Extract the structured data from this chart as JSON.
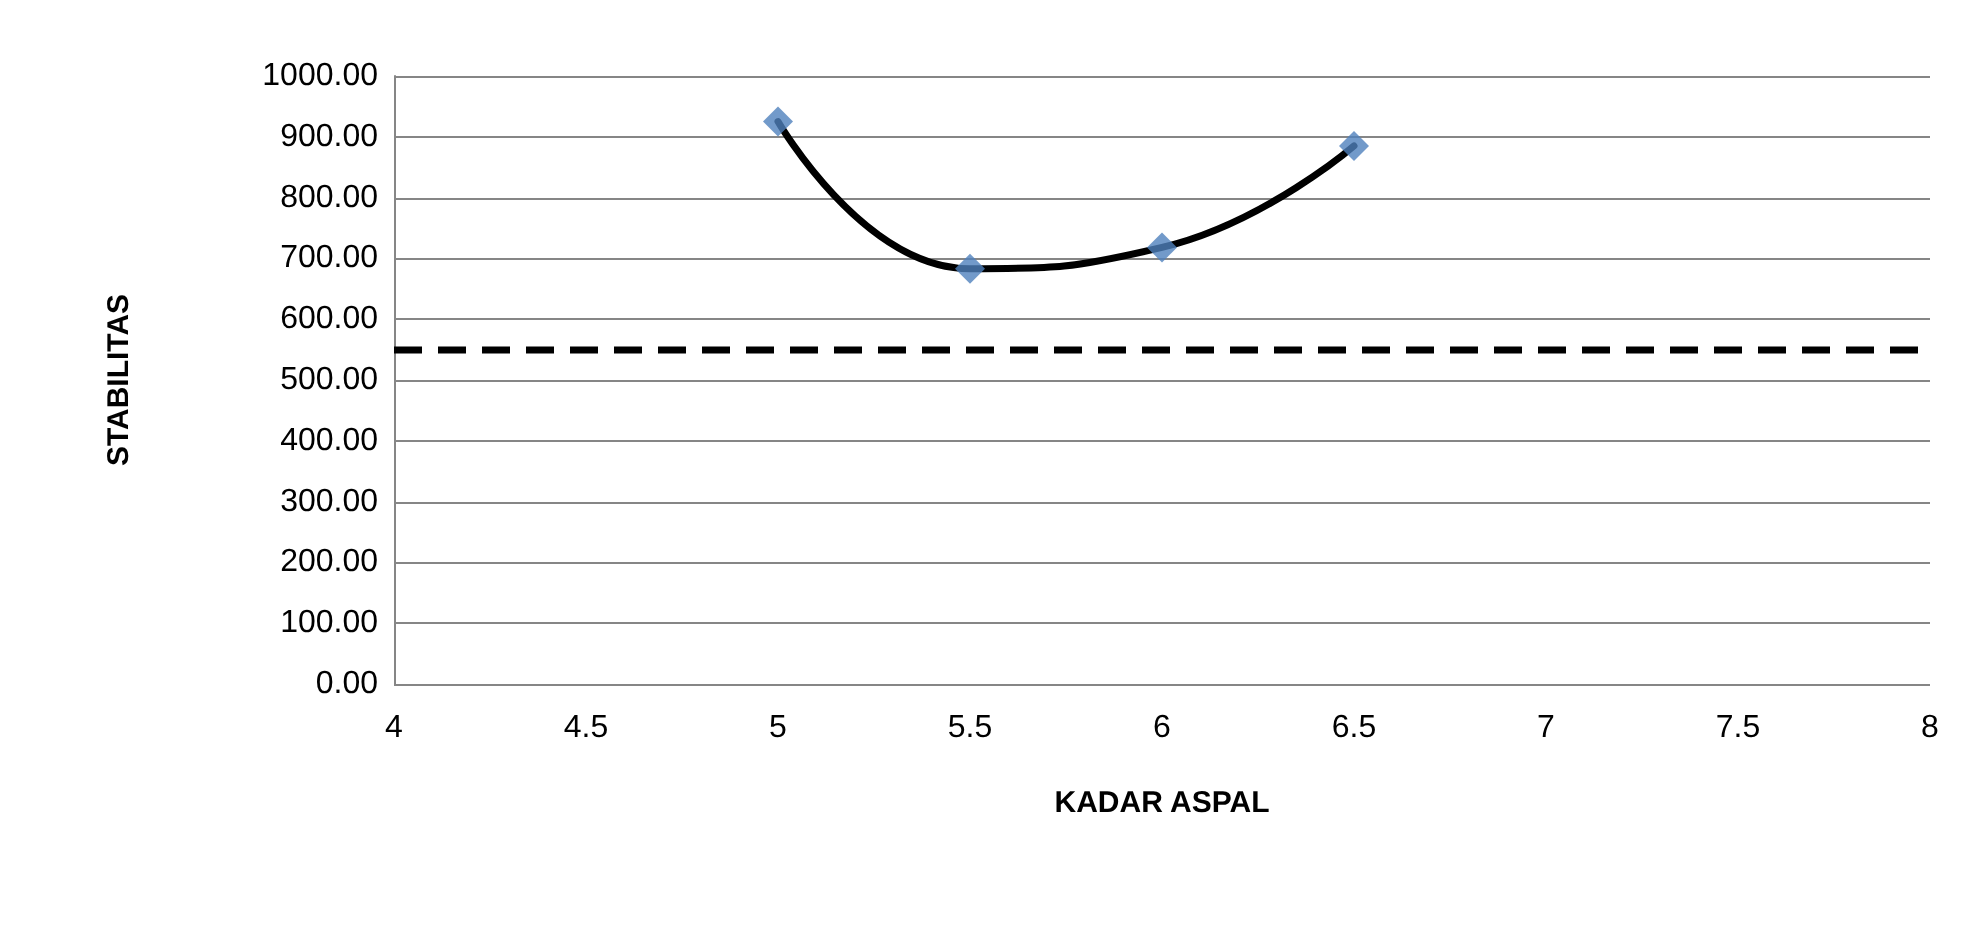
{
  "chart_data": {
    "type": "line",
    "xlabel": "KADAR ASPAL",
    "ylabel": "STABILITAS",
    "x": [
      5,
      5.5,
      6,
      6.5
    ],
    "series": [
      {
        "color": "#000000",
        "values": [
          925,
          683,
          718,
          885
        ],
        "marker": "none",
        "line_style": "solid"
      },
      {
        "type": "scatter",
        "color": "#4f81bd",
        "values": [
          925,
          683,
          718,
          885
        ],
        "marker": "diamond"
      }
    ],
    "xlim": [
      4,
      8
    ],
    "xticks": [
      4,
      4.5,
      5,
      5.5,
      6,
      6.5,
      7,
      7.5,
      8
    ],
    "ylim": [
      0,
      1000
    ],
    "yticks": [
      {
        "value": 0,
        "label": "0.00"
      },
      {
        "value": 100,
        "label": "100.00"
      },
      {
        "value": 200,
        "label": "200.00"
      },
      {
        "value": 300,
        "label": "300.00"
      },
      {
        "value": 400,
        "label": "400.00"
      },
      {
        "value": 500,
        "label": "500.00"
      },
      {
        "value": 600,
        "label": "600.00"
      },
      {
        "value": 700,
        "label": "700.00"
      },
      {
        "value": 800,
        "label": "800.00"
      },
      {
        "value": 900,
        "label": "900.00"
      },
      {
        "value": 1000,
        "label": "1000.00"
      }
    ],
    "grid": "y",
    "ref_lines": [
      {
        "axis": "y",
        "value": 550,
        "color": "#000000",
        "line_style": "dashed"
      }
    ]
  }
}
